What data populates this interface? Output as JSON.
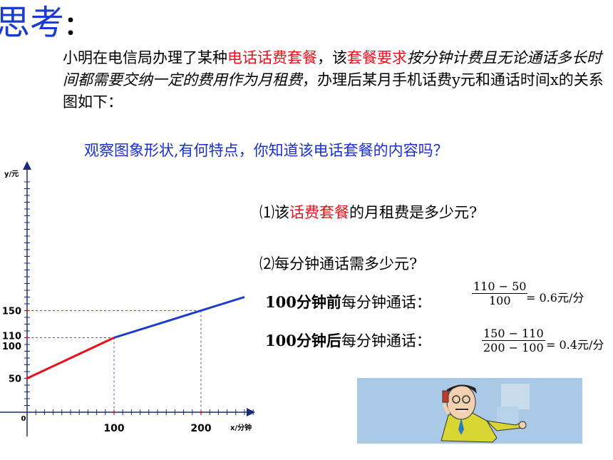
{
  "title": {
    "text": "思考",
    "colon": "："
  },
  "paragraph": {
    "p1": "小明在电信局办理了某种",
    "p2": "电话话费套餐",
    "p3": "，该",
    "p4": "套餐要求",
    "p5": "按分钟计费且无论通话多长时间都需要交纳一定的费用作为月租费",
    "p6": "，办理后某月手机话费y元和通话时间x的关系图如下："
  },
  "observe_question": "观察图象形状,有何特点，你知道该电话套餐的内容吗？",
  "question1": {
    "prefix": "⑴该",
    "red": "话费套餐",
    "suffix": "的月租费是多少元?"
  },
  "question2": "⑵每分钟通话需多少元?",
  "calc1": {
    "bold": "100分钟前",
    "text": "每分钟通话：",
    "numerator": "110 − 50",
    "denominator": "100",
    "result": "= 0.6元/分"
  },
  "calc2": {
    "bold": "100分钟后",
    "text": "每分钟通话：",
    "numerator": "150 − 110",
    "denominator": "200 − 100",
    "result": "= 0.4元/分"
  },
  "chart_data": {
    "type": "line",
    "xlabel": "x/分钟",
    "ylabel": "y/元",
    "x_ticks_labeled": [
      "0",
      "100",
      "200"
    ],
    "y_ticks_labeled": [
      "50",
      "100",
      "110",
      "150"
    ],
    "series": [
      {
        "color": "#e8111b",
        "points": [
          [
            0,
            50
          ],
          [
            100,
            110
          ]
        ]
      },
      {
        "color": "#1a3ccc",
        "points": [
          [
            100,
            110
          ],
          [
            250,
            170
          ]
        ]
      }
    ],
    "guides": [
      [
        100,
        110
      ],
      [
        200,
        150
      ]
    ]
  },
  "colors": {
    "title_blue": "#1a3ccc",
    "highlight_red": "#e8111b",
    "question_blue": "#1a2fd0"
  },
  "picture_icon": "person-on-phone-cartoon"
}
